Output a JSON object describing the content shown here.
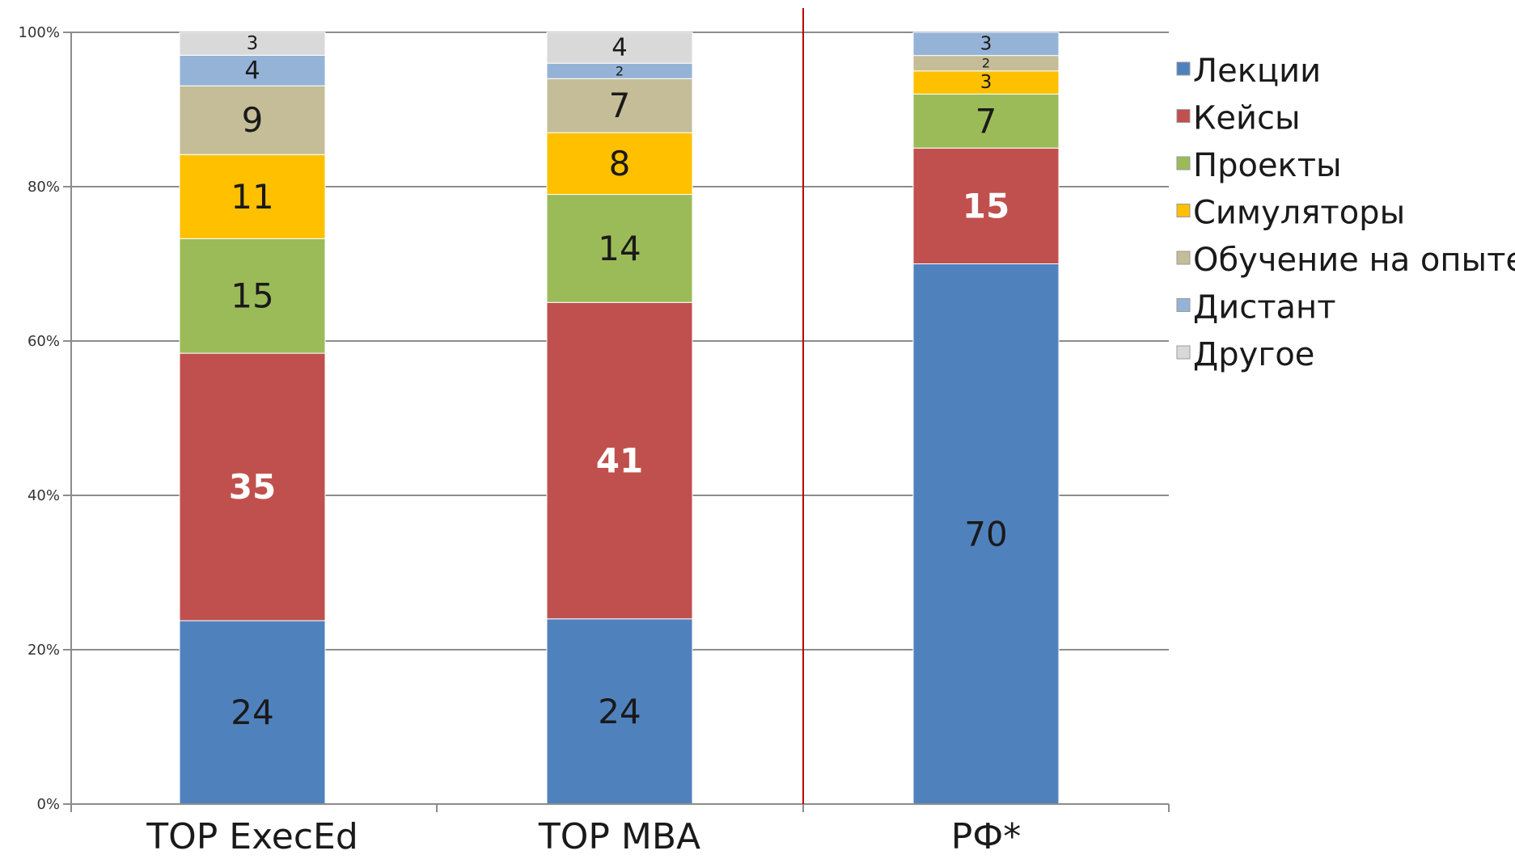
{
  "chart_data": {
    "type": "bar",
    "stacked": true,
    "normalized": true,
    "categories": [
      "TOP ExecEd",
      "TOP MBA",
      "РФ*"
    ],
    "yticks": [
      "0%",
      "20%",
      "40%",
      "60%",
      "80%",
      "100%"
    ],
    "ylim": [
      0,
      100
    ],
    "grid": true,
    "legend_position": "right",
    "series": [
      {
        "name": "Лекции",
        "values": [
          24,
          24,
          70
        ],
        "color": "#4f81bd"
      },
      {
        "name": "Кейсы",
        "values": [
          35,
          41,
          15
        ],
        "color": "#c0504d"
      },
      {
        "name": "Проекты",
        "values": [
          15,
          14,
          7
        ],
        "color": "#9bbb59"
      },
      {
        "name": "Симуляторы",
        "values": [
          11,
          8,
          3
        ],
        "color": "#ffc000"
      },
      {
        "name": "Обучение на опыте",
        "values": [
          9,
          7,
          2
        ],
        "color": "#c4bd97"
      },
      {
        "name": "Дистант",
        "values": [
          4,
          2,
          3
        ],
        "color": "#95b3d7"
      },
      {
        "name": "Другое",
        "values": [
          3,
          4,
          null
        ],
        "color": "#d9d9d9"
      }
    ],
    "label_colors": [
      "#1a1a1a",
      "#ffffff",
      "#1a1a1a",
      "#1a1a1a",
      "#1a1a1a",
      "#1a1a1a",
      "#1a1a1a"
    ],
    "label_bold": [
      false,
      true,
      false,
      false,
      false,
      false,
      false
    ],
    "divider_color": "#c00000"
  }
}
